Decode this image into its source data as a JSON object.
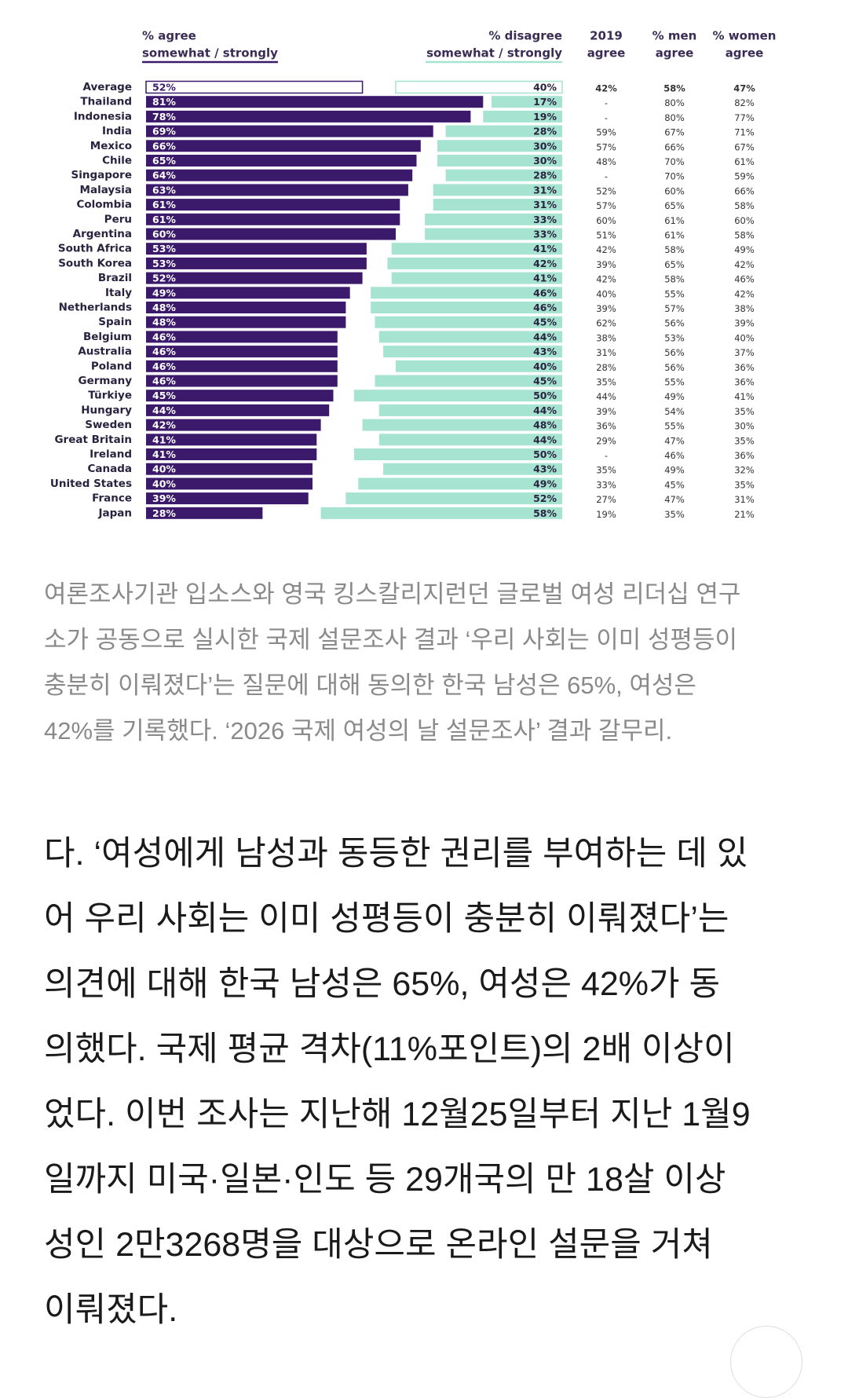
{
  "chart_data": {
    "type": "diverging-bar",
    "headers": {
      "agree": [
        "% agree",
        "somewhat / strongly"
      ],
      "disagree": [
        "% disagree",
        "somewhat / strongly"
      ]
    },
    "categories": [
      "Average",
      "Thailand",
      "Indonesia",
      "India",
      "Mexico",
      "Chile",
      "Singapore",
      "Malaysia",
      "Colombia",
      "Peru",
      "Argentina",
      "South Africa",
      "South Korea",
      "Brazil",
      "Italy",
      "Netherlands",
      "Spain",
      "Belgium",
      "Australia",
      "Poland",
      "Germany",
      "Türkiye",
      "Hungary",
      "Sweden",
      "Great Britain",
      "Ireland",
      "Canada",
      "United States",
      "France",
      "Japan"
    ],
    "series": [
      {
        "name": "agree",
        "color": "#3b1a6b",
        "values": [
          52,
          81,
          78,
          69,
          66,
          65,
          64,
          63,
          61,
          61,
          60,
          53,
          53,
          52,
          49,
          48,
          48,
          46,
          46,
          46,
          46,
          45,
          44,
          42,
          41,
          41,
          40,
          40,
          39,
          28
        ],
        "value_labels": [
          "52%",
          "81%",
          "78%",
          "69%",
          "66%",
          "65%",
          "64%",
          "63%",
          "61%",
          "61%",
          "60%",
          "53%",
          "53%",
          "52%",
          "49%",
          "48%",
          "48%",
          "46%",
          "46%",
          "46%",
          "46%",
          "45%",
          "44%",
          "42%",
          "41%",
          "41%",
          "40%",
          "40%",
          "39%",
          "28%"
        ]
      },
      {
        "name": "disagree",
        "color": "#a6e3d0",
        "values": [
          40,
          17,
          19,
          28,
          30,
          30,
          28,
          31,
          31,
          33,
          33,
          41,
          42,
          41,
          46,
          46,
          45,
          44,
          43,
          40,
          45,
          50,
          44,
          48,
          44,
          50,
          43,
          49,
          52,
          58
        ],
        "value_labels": [
          "40%",
          "17%",
          "19%",
          "28%",
          "30%",
          "30%",
          "28%",
          "31%",
          "31%",
          "33%",
          "33%",
          "41%",
          "42%",
          "41%",
          "46%",
          "46%",
          "45%",
          "44%",
          "43%",
          "40%",
          "45%",
          "50%",
          "44%",
          "48%",
          "44%",
          "50%",
          "43%",
          "49%",
          "52%",
          "58%"
        ]
      }
    ],
    "table_columns": [
      {
        "header": [
          "2019",
          "agree"
        ],
        "values": [
          42,
          null,
          null,
          59,
          57,
          48,
          null,
          52,
          57,
          60,
          51,
          42,
          39,
          42,
          40,
          39,
          62,
          38,
          31,
          28,
          35,
          44,
          39,
          36,
          29,
          null,
          35,
          33,
          27,
          19
        ],
        "value_labels": [
          "42%",
          "-",
          "-",
          "59%",
          "57%",
          "48%",
          "-",
          "52%",
          "57%",
          "60%",
          "51%",
          "42%",
          "39%",
          "42%",
          "40%",
          "39%",
          "62%",
          "38%",
          "31%",
          "28%",
          "35%",
          "44%",
          "39%",
          "36%",
          "29%",
          "-",
          "35%",
          "33%",
          "27%",
          "19%"
        ]
      },
      {
        "header": [
          "% men",
          "agree"
        ],
        "values": [
          58,
          80,
          80,
          67,
          66,
          70,
          70,
          60,
          65,
          61,
          61,
          58,
          65,
          58,
          55,
          57,
          56,
          53,
          56,
          56,
          55,
          49,
          54,
          55,
          47,
          46,
          49,
          45,
          47,
          35
        ],
        "value_labels": [
          "58%",
          "80%",
          "80%",
          "67%",
          "66%",
          "70%",
          "70%",
          "60%",
          "65%",
          "61%",
          "61%",
          "58%",
          "65%",
          "58%",
          "55%",
          "57%",
          "56%",
          "53%",
          "56%",
          "56%",
          "55%",
          "49%",
          "54%",
          "55%",
          "47%",
          "46%",
          "49%",
          "45%",
          "47%",
          "35%"
        ]
      },
      {
        "header": [
          "% women",
          "agree"
        ],
        "values": [
          47,
          82,
          77,
          71,
          67,
          61,
          59,
          66,
          58,
          60,
          58,
          49,
          42,
          46,
          42,
          38,
          39,
          40,
          37,
          36,
          36,
          41,
          35,
          30,
          35,
          36,
          32,
          35,
          31,
          21
        ],
        "value_labels": [
          "47%",
          "82%",
          "77%",
          "71%",
          "67%",
          "61%",
          "59%",
          "66%",
          "58%",
          "60%",
          "58%",
          "49%",
          "42%",
          "46%",
          "42%",
          "38%",
          "39%",
          "40%",
          "37%",
          "36%",
          "36%",
          "41%",
          "35%",
          "30%",
          "35%",
          "36%",
          "32%",
          "35%",
          "31%",
          "21%"
        ]
      }
    ]
  },
  "article": {
    "caption": [
      "여론조사기관 입소스와 영국 킹스칼리지런던 글로벌 여성 리더십 연구",
      "소가 공동으로 실시한 국제 설문조사 결과 ‘우리 사회는 이미 성평등이",
      "충분히 이뤄졌다’는 질문에 대해 동의한 한국 남성은 65%, 여성은",
      "42%를 기록했다. ‘2026 국제 여성의 날 설문조사’ 결과 갈무리."
    ],
    "body": [
      "다. ‘여성에게 남성과 동등한 권리를 부여하는 데 있",
      "어 우리 사회는 이미 성평등이 충분히 이뤄졌다’는",
      "의견에 대해 한국 남성은 65%, 여성은 42%가 동",
      "의했다. 국제 평균 격차(11%포인트)의 2배 이상이",
      "었다. 이번 조사는 지난해 12월25일부터 지난 1월9",
      "일까지 미국·일본·인도 등 29개국의 만 18살 이상",
      "성인 2만3268명을 대상으로 온라인 설문을 거쳐",
      "이뤄졌다."
    ]
  }
}
